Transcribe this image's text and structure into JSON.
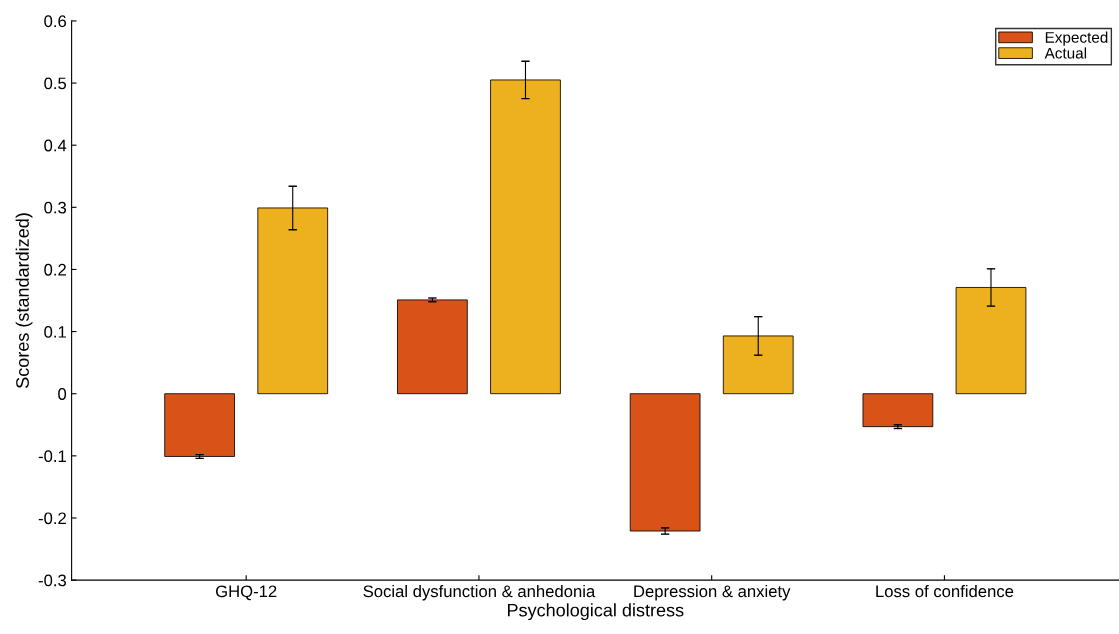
{
  "chart_data": {
    "type": "bar",
    "xlabel": "Psychological distress",
    "ylabel": "Scores (standardized)",
    "categories": [
      "GHQ-12",
      "Social dysfunction & anhedonia",
      "Depression & anxiety",
      "Loss of confidence"
    ],
    "series": [
      {
        "name": "Expected",
        "color": "#d95319",
        "values": [
          -0.101,
          0.151,
          -0.221,
          -0.053
        ],
        "errors": [
          0.003,
          0.003,
          0.005,
          0.003
        ]
      },
      {
        "name": "Actual",
        "color": "#edb120",
        "values": [
          0.299,
          0.505,
          0.093,
          0.171
        ],
        "errors": [
          0.035,
          0.03,
          0.031,
          0.03
        ]
      }
    ],
    "ylim": [
      -0.3,
      0.6
    ],
    "yticks": [
      {
        "value": -0.3,
        "label": "-0.3"
      },
      {
        "value": -0.2,
        "label": "-0.2"
      },
      {
        "value": -0.1,
        "label": "-0.1"
      },
      0,
      0.1,
      0.2,
      0.3,
      0.4,
      0.5,
      0.6
    ],
    "legend": "top right",
    "grid": false
  }
}
